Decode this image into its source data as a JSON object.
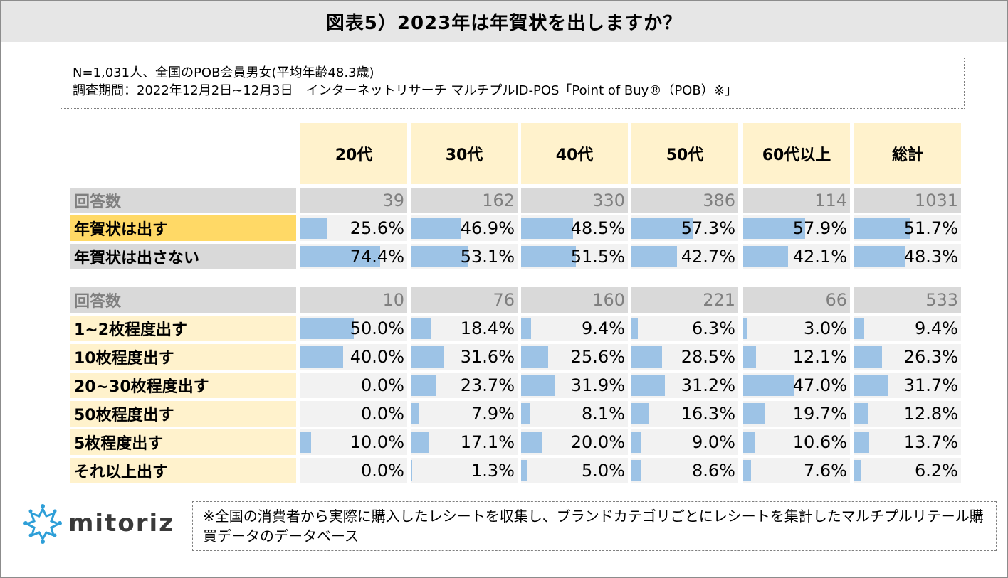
{
  "title": "図表5）2023年は年賀状を出しますか？",
  "info": {
    "line1": "N=1,031人、全国のPOB会員男女(平均年齢48.3歳)",
    "line2": "調査期間：2022年12月2日~12月3日　インターネットリサーチ マルチプルID-POS「Point of Buy®（POB）※」"
  },
  "colors": {
    "bar": "#9dc3e6",
    "header": "#fff2cc",
    "gold": "#ffd966",
    "grey": "#d9d9d9",
    "cell": "#f2f2f2"
  },
  "chart_data": {
    "type": "table",
    "columns": [
      "20代",
      "30代",
      "40代",
      "50代",
      "60代以上",
      "総計"
    ],
    "section1": {
      "count_label": "回答数",
      "counts": [
        "39",
        "162",
        "330",
        "386",
        "114",
        "1031"
      ],
      "rows": [
        {
          "label": "年賀状は出す",
          "values": [
            25.6,
            46.9,
            48.5,
            57.3,
            57.9,
            51.7
          ],
          "texts": [
            "25.6%",
            "46.9%",
            "48.5%",
            "57.3%",
            "57.9%",
            "51.7%"
          ]
        },
        {
          "label": "年賀状は出さない",
          "values": [
            74.4,
            53.1,
            51.5,
            42.7,
            42.1,
            48.3
          ],
          "texts": [
            "74.4%",
            "53.1%",
            "51.5%",
            "42.7%",
            "42.1%",
            "48.3%"
          ]
        }
      ]
    },
    "section2": {
      "count_label": "回答数",
      "counts": [
        "10",
        "76",
        "160",
        "221",
        "66",
        "533"
      ],
      "rows": [
        {
          "label": "1~2枚程度出す",
          "values": [
            50.0,
            18.4,
            9.4,
            6.3,
            3.0,
            9.4
          ],
          "texts": [
            "50.0%",
            "18.4%",
            "9.4%",
            "6.3%",
            "3.0%",
            "9.4%"
          ]
        },
        {
          "label": "10枚程度出す",
          "values": [
            40.0,
            31.6,
            25.6,
            28.5,
            12.1,
            26.3
          ],
          "texts": [
            "40.0%",
            "31.6%",
            "25.6%",
            "28.5%",
            "12.1%",
            "26.3%"
          ]
        },
        {
          "label": "20~30枚程度出す",
          "values": [
            0.0,
            23.7,
            31.9,
            31.2,
            47.0,
            31.7
          ],
          "texts": [
            "0.0%",
            "23.7%",
            "31.9%",
            "31.2%",
            "47.0%",
            "31.7%"
          ]
        },
        {
          "label": "50枚程度出す",
          "values": [
            0.0,
            7.9,
            8.1,
            16.3,
            19.7,
            12.8
          ],
          "texts": [
            "0.0%",
            "7.9%",
            "8.1%",
            "16.3%",
            "19.7%",
            "12.8%"
          ]
        },
        {
          "label": "5枚程度出す",
          "values": [
            10.0,
            17.1,
            20.0,
            9.0,
            10.6,
            13.7
          ],
          "texts": [
            "10.0%",
            "17.1%",
            "20.0%",
            "9.0%",
            "10.6%",
            "13.7%"
          ]
        },
        {
          "label": "それ以上出す",
          "values": [
            0.0,
            1.3,
            5.0,
            8.6,
            7.6,
            6.2
          ],
          "texts": [
            "0.0%",
            "1.3%",
            "5.0%",
            "8.6%",
            "7.6%",
            "6.2%"
          ]
        }
      ]
    }
  },
  "logo": {
    "text": "mitoriz"
  },
  "footnote": "※全国の消費者から実際に購入したレシートを収集し、ブランドカテゴリごとにレシートを集計したマルチプルリテール購買データのデータベース"
}
